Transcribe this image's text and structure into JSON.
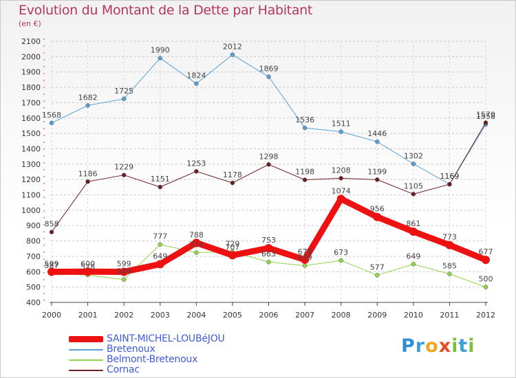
{
  "title": "Evolution du Montant de la Dette par Habitant",
  "subtitle": "(en €)",
  "logo": "Proxiti",
  "chart_data": {
    "type": "line",
    "x": [
      "2000",
      "2001",
      "2002",
      "2003",
      "2004",
      "2005",
      "2006",
      "2007",
      "2008",
      "2009",
      "2010",
      "2011",
      "2012"
    ],
    "ylim": [
      400,
      2100
    ],
    "yticks": [
      400,
      500,
      600,
      700,
      800,
      900,
      1000,
      1100,
      1200,
      1300,
      1400,
      1500,
      1600,
      1700,
      1800,
      1900,
      2000,
      2100
    ],
    "grid": true,
    "legend_position": "bottom-left",
    "series": [
      {
        "name": "Bretenoux",
        "color": "#5a9fd4",
        "width": 1,
        "values": [
          1568,
          1682,
          1725,
          1990,
          1824,
          2012,
          1869,
          1536,
          1511,
          1446,
          1302,
          1169,
          1558
        ],
        "labels": [
          "1568",
          "1682",
          "1725",
          "1990",
          "1824",
          "2012",
          "1869",
          "1536",
          "1511",
          "1446",
          "1302",
          "1169",
          "1558"
        ]
      },
      {
        "name": "Cornac",
        "color": "#6b1e24",
        "width": 1,
        "values": [
          858,
          1186,
          1229,
          1151,
          1253,
          1178,
          1298,
          1198,
          1208,
          1199,
          1105,
          1169,
          1570
        ],
        "labels": [
          "858",
          "1186",
          "1229",
          "1151",
          "1253",
          "1178",
          "1298",
          "1198",
          "1208",
          "1199",
          "1105",
          "1169",
          "1570"
        ]
      },
      {
        "name": "Belmont-Bretenoux",
        "color": "#8fd44a",
        "width": 1,
        "values": [
          587,
          578,
          549,
          777,
          724,
          729,
          663,
          639,
          673,
          577,
          649,
          585,
          500
        ],
        "labels": [
          "587",
          "578",
          "549",
          "777",
          "724",
          "729",
          "663",
          "639",
          "673",
          "577",
          "649",
          "585",
          "500"
        ]
      },
      {
        "name": "SAINT-MICHEL-LOUBéJOU",
        "color": "#ee1111",
        "width": 9,
        "values": [
          599,
          600,
          599,
          649,
          788,
          707,
          753,
          678,
          1074,
          956,
          861,
          773,
          677
        ],
        "labels": [
          "599",
          "600",
          "599",
          "649",
          "788",
          "707",
          "753",
          "678",
          "1074",
          "956",
          "861",
          "773",
          "677"
        ]
      }
    ],
    "legend_order": [
      "SAINT-MICHEL-LOUBéJOU",
      "Bretenoux",
      "Belmont-Bretenoux",
      "Cornac"
    ]
  }
}
